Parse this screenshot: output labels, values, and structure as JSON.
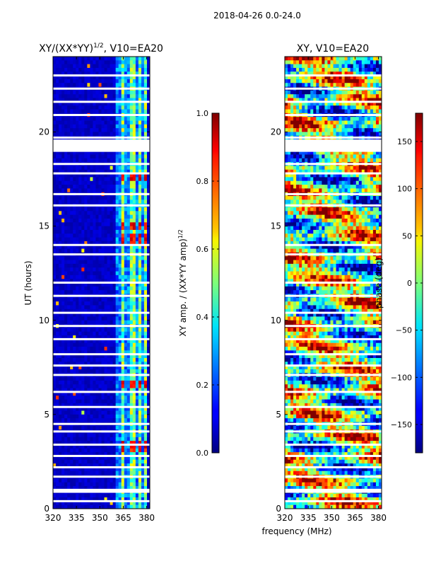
{
  "figure": {
    "suptitle": "2018-04-26 0.0-24.0",
    "xlabel": "frequency (MHz)"
  },
  "chart_data": [
    {
      "type": "heatmap",
      "title_prefix": "XY/(XX*YY)",
      "title_exponent": "1/2",
      "title_suffix": ", V10=EA20",
      "xlabel": "",
      "ylabel": "UT (hours)",
      "xlim": [
        320,
        382
      ],
      "ylim": [
        0,
        24
      ],
      "xticks": [
        "320",
        "335",
        "350",
        "365",
        "380"
      ],
      "xtick_values": [
        320,
        335,
        350,
        365,
        380
      ],
      "yticks": [
        "0",
        "5",
        "10",
        "15",
        "20"
      ],
      "ytick_values": [
        0,
        5,
        10,
        15,
        20
      ],
      "colorbar": {
        "label_main": "XY amp. / (XX*YY amp)",
        "label_exponent": "1/2",
        "range": [
          0.0,
          1.0
        ],
        "ticks": [
          "0.0",
          "0.2",
          "0.4",
          "0.6",
          "0.8",
          "1.0"
        ],
        "tick_values": [
          0.0,
          0.2,
          0.4,
          0.6,
          0.8,
          1.0
        ]
      },
      "gaps_hours": [
        0.4,
        0.9,
        1.0,
        1.7,
        2.2,
        2.8,
        3.4,
        4.1,
        4.5,
        5.4,
        6.2,
        7.1,
        7.6,
        8.2,
        9.0,
        9.7,
        10.4,
        11.3,
        12.0,
        13.5,
        14.0,
        16.1,
        16.7,
        17.8,
        18.3,
        19.0,
        19.7,
        20.9,
        21.6,
        22.3,
        23.0
      ],
      "gap_band_hours": [
        [
          19.0,
          19.6
        ]
      ],
      "bright_bands_mhz": [
        [
          363,
          366
        ],
        [
          369,
          372
        ],
        [
          374,
          377
        ],
        [
          378,
          380
        ]
      ],
      "high_amp_hours": [
        3.3,
        6.6,
        14.3,
        15.0,
        17.6
      ]
    },
    {
      "type": "heatmap",
      "title": "XY, V10=EA20",
      "xlabel": "",
      "ylabel": "",
      "xlim": [
        320,
        382
      ],
      "ylim": [
        0,
        24
      ],
      "xticks": [
        "320",
        "335",
        "350",
        "365",
        "380"
      ],
      "xtick_values": [
        320,
        335,
        350,
        365,
        380
      ],
      "yticks": [
        "0",
        "5",
        "10",
        "15",
        "20"
      ],
      "ytick_values": [
        0,
        5,
        10,
        15,
        20
      ],
      "colorbar": {
        "label": "phase (deg)",
        "range": [
          -180,
          180
        ],
        "ticks": [
          "−150",
          "−100",
          "−50",
          "0",
          "50",
          "100",
          "150"
        ],
        "tick_values": [
          -150,
          -100,
          -50,
          0,
          50,
          100,
          150
        ]
      },
      "gaps_hours": [
        0.4,
        0.9,
        1.0,
        1.7,
        2.2,
        2.8,
        3.4,
        4.1,
        4.5,
        5.4,
        6.2,
        7.1,
        7.6,
        8.2,
        9.0,
        9.7,
        10.4,
        11.3,
        12.0,
        13.5,
        14.0,
        16.1,
        16.7,
        17.8,
        18.3,
        19.0,
        19.7,
        20.9,
        21.6,
        22.3,
        23.0
      ],
      "gap_band_hours": [
        [
          19.0,
          19.6
        ]
      ]
    }
  ]
}
